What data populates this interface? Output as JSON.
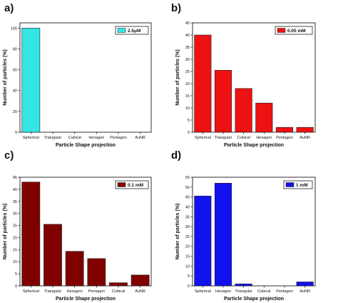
{
  "chart_data": [
    {
      "type": "bar",
      "panel": "a)",
      "categories": [
        "Spherical",
        "Triangular",
        "Cubical",
        "Hexagon",
        "Pentagon",
        "AuNR"
      ],
      "values": [
        100,
        0,
        0,
        0,
        0,
        0
      ],
      "series_name": "2.5μM",
      "color": "#33e5e5",
      "xlabel": "Particle Shape projection",
      "ylabel": "Number of particles (%)",
      "ylim": [
        0,
        105
      ],
      "yticks": [
        0,
        20,
        40,
        60,
        80,
        100
      ],
      "legend": "top-right",
      "grid": false
    },
    {
      "type": "bar",
      "panel": "b)",
      "categories": [
        "Spherical",
        "Triangular",
        "Cubical",
        "Hexagon",
        "Pentagon",
        "AuNR"
      ],
      "values": [
        40,
        25.5,
        18,
        12,
        2,
        2
      ],
      "series_name": "0.05 mM",
      "color": "#ee1111",
      "xlabel": "Particle Shape projection",
      "ylabel": "Number of particles (%)",
      "ylim": [
        0,
        45
      ],
      "yticks": [
        0,
        5,
        10,
        15,
        20,
        25,
        30,
        35,
        40,
        45
      ],
      "legend": "top-right",
      "grid": false
    },
    {
      "type": "bar",
      "panel": "c)",
      "categories": [
        "Spherical",
        "Triangular",
        "Hexagon",
        "Pentagon",
        "Cubical",
        "AuNR"
      ],
      "values": [
        43,
        25.5,
        14.3,
        11.3,
        1.3,
        4.5
      ],
      "series_name": "0.1 mM",
      "color": "#800000",
      "xlabel": "Particle Shape projection",
      "ylabel": "Number of particles (%)",
      "ylim": [
        0,
        45
      ],
      "yticks": [
        0,
        5,
        10,
        15,
        20,
        25,
        30,
        35,
        40,
        45
      ],
      "legend": "top-right",
      "grid": false
    },
    {
      "type": "bar",
      "panel": "d)",
      "categories": [
        "Spherical",
        "Hexagon",
        "Triangular",
        "Cubical",
        "Pentagon",
        "AuNR"
      ],
      "values": [
        45.5,
        52,
        1,
        0,
        0,
        2
      ],
      "series_name": "1 mM",
      "color": "#1111ee",
      "xlabel": "Particle Shape projection",
      "ylabel": "Number of particles (%)",
      "ylim": [
        0,
        55
      ],
      "yticks": [
        0,
        5,
        10,
        15,
        20,
        25,
        30,
        35,
        40,
        45,
        50,
        55
      ],
      "legend": "top-right",
      "grid": false
    }
  ]
}
